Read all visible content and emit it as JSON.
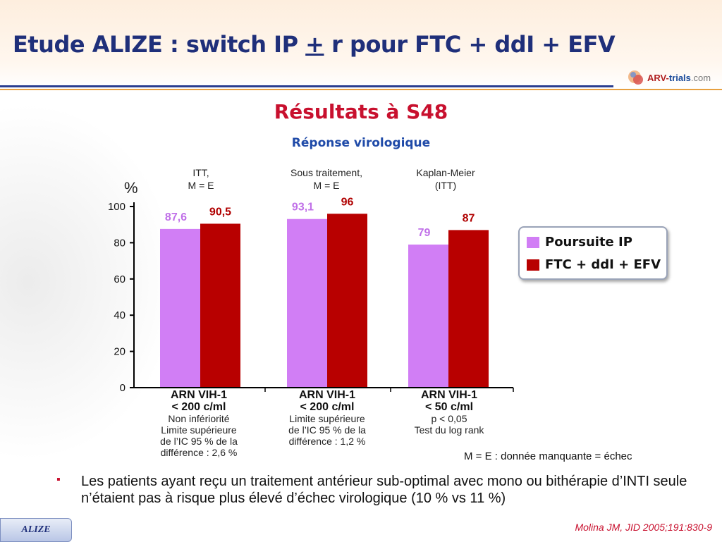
{
  "header": {
    "title_prefix": "Etude ALIZE : switch IP ",
    "title_plusminus": "+",
    "title_suffix": " r pour FTC + ddI + EFV",
    "logo_text_a": "ARV-",
    "logo_text_b": "trials",
    "logo_text_c": ".com"
  },
  "subtitle": "Résultats à S48",
  "section_title": "Réponse virologique",
  "group_labels": [
    "ITT,\nM = E",
    "Sous traitement,\nM = E",
    "Kaplan-Meier\n(ITT)"
  ],
  "category_blocks": [
    {
      "main": "ARN VIH-1\n< 200 c/ml",
      "note": "Non infériorité\nLimite supérieure\nde l’IC 95 % de la\ndifférence : 2,6 %"
    },
    {
      "main": "ARN VIH-1\n< 200 c/ml",
      "note": "Limite supérieure\nde l’IC 95 % de la\ndifférence : 1,2 %"
    },
    {
      "main": "ARN VIH-1\n< 50 c/ml",
      "note": "p < 0,05\nTest du log rank"
    }
  ],
  "legend": [
    "Poursuite IP",
    "FTC + ddI + EFV"
  ],
  "footnote": "M = E : donnée manquante = échec",
  "bullet": "Les patients ayant reçu un traitement antérieur sub-optimal avec mono ou bithérapie d’INTI seule n’étaient pas à risque plus élevé d’échec virologique (10 % vs 11 %)",
  "badge": "ALIZE",
  "citation": "Molina JM, JID 2005;191:830-9",
  "colors": {
    "poursuite": "#d17ef5",
    "ftc": "#b80000",
    "poursuite_label": "#c070e8",
    "ftc_label": "#b00000",
    "title": "#1f2f7a",
    "accent": "#c8102e"
  },
  "chart_data": {
    "type": "bar",
    "ylabel": "%",
    "ylim": [
      0,
      100
    ],
    "yticks": [
      0,
      20,
      40,
      60,
      80,
      100
    ],
    "categories": [
      "ITT, M = E",
      "Sous traitement, M = E",
      "Kaplan-Meier (ITT)"
    ],
    "series": [
      {
        "name": "Poursuite IP",
        "values": [
          87.6,
          93.1,
          79
        ],
        "labels": [
          "87,6",
          "93,1",
          "79"
        ]
      },
      {
        "name": "FTC + ddI + EFV",
        "values": [
          90.5,
          96,
          87
        ],
        "labels": [
          "90,5",
          "96",
          "87"
        ]
      }
    ],
    "legend_position": "right",
    "grid": false
  }
}
